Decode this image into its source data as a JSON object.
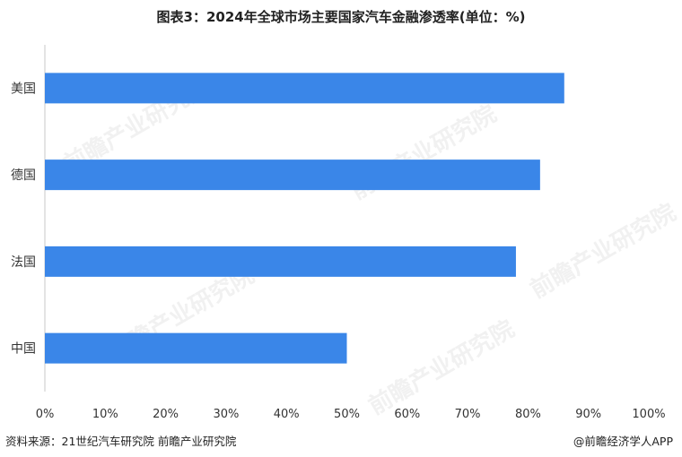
{
  "title": "图表3：2024年全球市场主要国家汽车金融渗透率(单位：%)",
  "source": "资料来源：21世纪汽车研究院 前瞻产业研究院",
  "brand": "@前瞻经济学人APP",
  "watermark_text": "前瞻产业研究院",
  "colors": {
    "bar": "#3a86e8",
    "axis": "#c8c8c8"
  },
  "chart_data": {
    "type": "bar",
    "orientation": "horizontal",
    "categories": [
      "美国",
      "德国",
      "法国",
      "中国"
    ],
    "values": [
      86,
      82,
      78,
      50
    ],
    "xlim": [
      0,
      100
    ],
    "xticks": [
      "0%",
      "10%",
      "20%",
      "30%",
      "40%",
      "50%",
      "60%",
      "70%",
      "80%",
      "90%",
      "100%"
    ],
    "xlabel": "",
    "ylabel": "",
    "grid": false,
    "legend": "none"
  }
}
